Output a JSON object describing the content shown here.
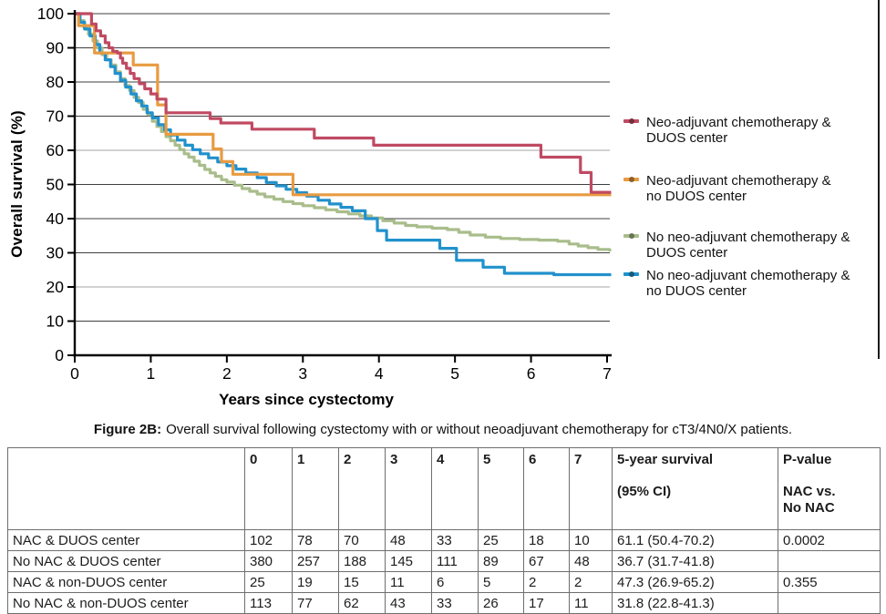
{
  "figure": {
    "caption_prefix": "Figure 2B:",
    "caption_text": "Overall survival following cystectomy with or without neoadjuvant chemotherapy for cT3/4N0/X patients."
  },
  "chart_data": {
    "type": "line",
    "subtype": "kaplan-meier-step",
    "title": "",
    "xlabel": "Years since cystectomy",
    "ylabel": "Overall survival (%)",
    "xlim": [
      0,
      7
    ],
    "ylim": [
      0,
      100
    ],
    "xticks": [
      0,
      1,
      2,
      3,
      4,
      5,
      6,
      7
    ],
    "yticks": [
      0,
      10,
      20,
      30,
      40,
      50,
      60,
      70,
      80,
      90,
      100
    ],
    "grid": "horizontal",
    "light_gridlines": [
      20,
      60
    ],
    "legend_position": "right",
    "draw_order": [
      2,
      3,
      1,
      0
    ],
    "series": [
      {
        "name": "Neo-adjuvant chemotherapy &\nDUOS center",
        "color": "#c04a62",
        "points": [
          [
            0,
            100
          ],
          [
            0.22,
            97
          ],
          [
            0.28,
            95
          ],
          [
            0.34,
            93.5
          ],
          [
            0.4,
            91.5
          ],
          [
            0.45,
            90
          ],
          [
            0.5,
            89
          ],
          [
            0.56,
            88.5
          ],
          [
            0.6,
            87
          ],
          [
            0.63,
            85.5
          ],
          [
            0.68,
            84
          ],
          [
            0.73,
            82.5
          ],
          [
            0.78,
            81
          ],
          [
            0.85,
            79.5
          ],
          [
            0.92,
            78
          ],
          [
            1.0,
            76.5
          ],
          [
            1.08,
            75
          ],
          [
            1.2,
            71
          ],
          [
            1.78,
            69.3
          ],
          [
            1.92,
            68
          ],
          [
            2.33,
            66.2
          ],
          [
            3.15,
            63.6
          ],
          [
            3.93,
            61.5
          ],
          [
            6.13,
            58
          ],
          [
            6.65,
            53.5
          ],
          [
            6.79,
            47.7
          ],
          [
            7.03,
            47.7
          ]
        ]
      },
      {
        "name": "Neo-adjuvant chemotherapy  &\nno DUOS center",
        "color": "#e89b41",
        "points": [
          [
            0,
            100
          ],
          [
            0.05,
            96.5
          ],
          [
            0.26,
            88.5
          ],
          [
            0.77,
            85
          ],
          [
            1.09,
            73.3
          ],
          [
            1.2,
            64.7
          ],
          [
            1.82,
            60.4
          ],
          [
            1.93,
            56.7
          ],
          [
            2.08,
            53
          ],
          [
            2.87,
            47
          ],
          [
            7.03,
            47
          ]
        ]
      },
      {
        "name": "No neo-adjuvant chemotherapy &\nDUOS center",
        "color": "#a9bd8b",
        "points": [
          [
            0,
            100
          ],
          [
            0.06,
            98
          ],
          [
            0.12,
            96
          ],
          [
            0.18,
            94
          ],
          [
            0.24,
            92
          ],
          [
            0.3,
            90
          ],
          [
            0.36,
            88
          ],
          [
            0.42,
            86.5
          ],
          [
            0.48,
            85
          ],
          [
            0.54,
            83
          ],
          [
            0.6,
            81
          ],
          [
            0.66,
            79
          ],
          [
            0.72,
            77.5
          ],
          [
            0.78,
            75.5
          ],
          [
            0.84,
            74
          ],
          [
            0.9,
            72
          ],
          [
            0.96,
            70.5
          ],
          [
            1.02,
            68.5
          ],
          [
            1.08,
            67
          ],
          [
            1.14,
            65.5
          ],
          [
            1.2,
            64
          ],
          [
            1.26,
            62.8
          ],
          [
            1.32,
            61.5
          ],
          [
            1.38,
            60.2
          ],
          [
            1.44,
            59
          ],
          [
            1.5,
            58
          ],
          [
            1.57,
            56.8
          ],
          [
            1.64,
            55.6
          ],
          [
            1.71,
            54.4
          ],
          [
            1.78,
            53.4
          ],
          [
            1.85,
            52.4
          ],
          [
            1.93,
            51.4
          ],
          [
            2.0,
            50.7
          ],
          [
            2.1,
            49.8
          ],
          [
            2.2,
            48.8
          ],
          [
            2.3,
            48
          ],
          [
            2.4,
            47.2
          ],
          [
            2.5,
            46.4
          ],
          [
            2.62,
            45.7
          ],
          [
            2.74,
            45
          ],
          [
            2.87,
            44.4
          ],
          [
            3.0,
            43.8
          ],
          [
            3.15,
            43.2
          ],
          [
            3.3,
            42.6
          ],
          [
            3.45,
            42
          ],
          [
            3.6,
            41.4
          ],
          [
            3.75,
            40.8
          ],
          [
            3.9,
            40.2
          ],
          [
            4.05,
            39.4
          ],
          [
            4.2,
            38.7
          ],
          [
            4.35,
            38
          ],
          [
            4.5,
            37.6
          ],
          [
            4.7,
            37.2
          ],
          [
            4.9,
            36.8
          ],
          [
            5.05,
            36
          ],
          [
            5.2,
            35.2
          ],
          [
            5.4,
            34.6
          ],
          [
            5.6,
            34.2
          ],
          [
            5.85,
            33.9
          ],
          [
            6.1,
            33.7
          ],
          [
            6.35,
            33.4
          ],
          [
            6.5,
            32.6
          ],
          [
            6.62,
            32
          ],
          [
            6.75,
            31.5
          ],
          [
            6.88,
            31
          ],
          [
            7.03,
            30.8
          ]
        ]
      },
      {
        "name": "No neo-adjuvant chemotherapy  &\nno DUOS center",
        "color": "#2191cc",
        "points": [
          [
            0,
            100
          ],
          [
            0.07,
            97.5
          ],
          [
            0.13,
            95.5
          ],
          [
            0.2,
            93.5
          ],
          [
            0.27,
            91
          ],
          [
            0.33,
            88.5
          ],
          [
            0.4,
            86.5
          ],
          [
            0.47,
            84.5
          ],
          [
            0.53,
            82.5
          ],
          [
            0.6,
            80.5
          ],
          [
            0.67,
            78.5
          ],
          [
            0.74,
            76.5
          ],
          [
            0.81,
            74.5
          ],
          [
            0.88,
            73
          ],
          [
            0.95,
            71
          ],
          [
            1.02,
            69.5
          ],
          [
            1.1,
            67.5
          ],
          [
            1.18,
            66
          ],
          [
            1.26,
            64.5
          ],
          [
            1.35,
            63
          ],
          [
            1.45,
            61.5
          ],
          [
            1.55,
            60.2
          ],
          [
            1.65,
            59
          ],
          [
            1.76,
            57.8
          ],
          [
            1.88,
            56.6
          ],
          [
            2.0,
            55.5
          ],
          [
            2.12,
            54.5
          ],
          [
            2.25,
            53.4
          ],
          [
            2.4,
            52
          ],
          [
            2.52,
            50.6
          ],
          [
            2.65,
            49.6
          ],
          [
            2.78,
            48.6
          ],
          [
            2.92,
            47.6
          ],
          [
            3.05,
            46.6
          ],
          [
            3.2,
            45.4
          ],
          [
            3.35,
            44.3
          ],
          [
            3.5,
            43.3
          ],
          [
            3.65,
            42.3
          ],
          [
            3.82,
            40
          ],
          [
            3.98,
            36.5
          ],
          [
            4.1,
            33.7
          ],
          [
            4.8,
            31.3
          ],
          [
            5.02,
            27.8
          ],
          [
            5.37,
            25.8
          ],
          [
            5.65,
            24
          ],
          [
            6.3,
            23.6
          ],
          [
            7.03,
            23.6
          ]
        ]
      }
    ]
  },
  "table": {
    "col_headers": [
      "",
      "0",
      "1",
      "2",
      "3",
      "4",
      "5",
      "6",
      "7",
      "5-year survival\n\n(95% CI)",
      "P-value\n\nNAC vs.\nNo NAC"
    ],
    "rows": [
      {
        "label": "NAC & DUOS center",
        "cells": [
          "102",
          "78",
          "70",
          "48",
          "33",
          "25",
          "18",
          "10",
          "61.1 (50.4-70.2)",
          "0.0002"
        ]
      },
      {
        "label": "No NAC & DUOS center",
        "cells": [
          "380",
          "257",
          "188",
          "145",
          "111",
          "89",
          "67",
          "48",
          "36.7 (31.7-41.8)",
          ""
        ]
      },
      {
        "label": "NAC & non-DUOS center",
        "cells": [
          "25",
          "19",
          "15",
          "11",
          "6",
          "5",
          "2",
          "2",
          "47.3 (26.9-65.2)",
          "0.355"
        ]
      },
      {
        "label": "No NAC & non-DUOS center",
        "cells": [
          "113",
          "77",
          "62",
          "43",
          "33",
          "26",
          "17",
          "11",
          "31.8 (22.8-41.3)",
          ""
        ]
      }
    ]
  }
}
